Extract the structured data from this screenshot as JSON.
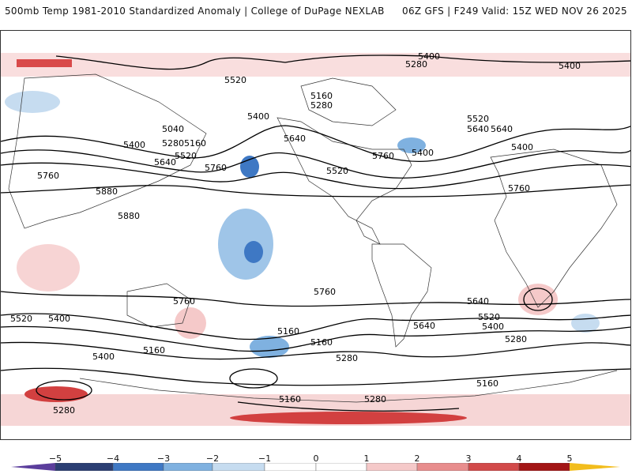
{
  "header": {
    "left_title": "500mb Temp 1981-2010 Standardized Anomaly | College of DuPage NEXLAB",
    "right_title": "06Z GFS | F249 Valid: 15Z WED NOV 26 2025"
  },
  "contour_labels": [
    "5400",
    "5280",
    "5400",
    "5520",
    "5160",
    "5280",
    "5400",
    "5640",
    "5040",
    "5400",
    "5280",
    "5160",
    "5520",
    "5640",
    "5760",
    "5760",
    "5880",
    "5880",
    "5520",
    "5760",
    "5400",
    "5640",
    "5520",
    "5640",
    "5400",
    "5760",
    "5760",
    "5760",
    "5640",
    "5520",
    "5400",
    "5640",
    "5520",
    "5400",
    "5160",
    "5160",
    "5280",
    "5400",
    "5160",
    "5280",
    "5280",
    "5160",
    "5280",
    "5160"
  ],
  "colorbar": {
    "ticks": [
      "−5",
      "−4",
      "−3",
      "−2",
      "−1",
      "0",
      "1",
      "2",
      "3",
      "4",
      "5"
    ],
    "colors": [
      "#4b2c8c",
      "#2b3e73",
      "#3e78c4",
      "#7fb1e0",
      "#c6dcf0",
      "#ffffff",
      "#ffffff",
      "#f5c9c9",
      "#e88d8d",
      "#d24a4a",
      "#a31515",
      "#e8b21f"
    ],
    "under_color": "#5b3e9c",
    "over_color": "#f2bd1d"
  }
}
